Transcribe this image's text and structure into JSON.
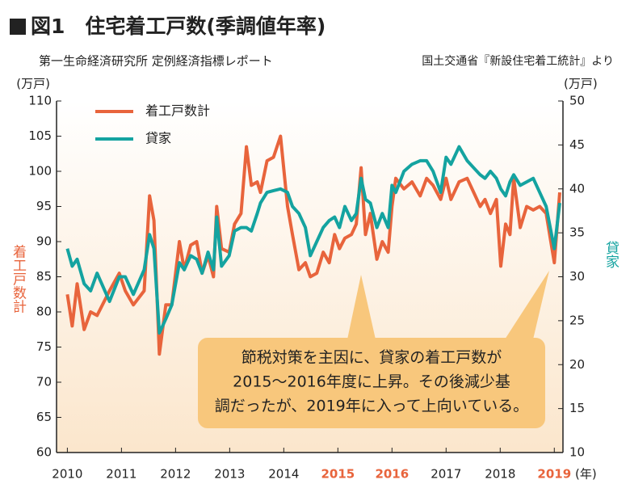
{
  "chart_data": {
    "type": "line",
    "title": "図1　住宅着工戸数(季調値年率)",
    "subtitle": "第一生命経済研究所 定例経済指標レポート",
    "source": "国土交通省『新設住宅着工統計』より",
    "y_unit": "(万戸)",
    "y2_unit": "(万戸)",
    "x_label": "(年)",
    "y_label": "着工戸数計",
    "y2_label": "貸家",
    "annotation": [
      "節税対策を主因に、貸家の着工戸数が",
      "2015～2016年度に上昇。その後減少基",
      "調だったが、2019年に入って上向いている。"
    ],
    "xlim": [
      2009.8,
      2019.16
    ],
    "xticks": [
      2010,
      2011,
      2012,
      2013,
      2014,
      2015,
      2016,
      2017,
      2018,
      2019
    ],
    "highlighted_xticks": [
      2015,
      2016,
      2019
    ],
    "highlight_color": "#e8643c",
    "ylim": [
      60,
      110
    ],
    "yticks": [
      60,
      65,
      70,
      75,
      80,
      85,
      90,
      95,
      100,
      105,
      110
    ],
    "y2lim": [
      10,
      50
    ],
    "y2ticks": [
      10,
      15,
      20,
      25,
      30,
      35,
      40,
      45,
      50
    ],
    "legend": "upper left",
    "x": [
      2010.0,
      2010.09,
      2010.18,
      2010.31,
      2010.43,
      2010.55,
      2010.78,
      2010.96,
      2011.07,
      2011.22,
      2011.42,
      2011.52,
      2011.6,
      2011.7,
      2011.82,
      2011.93,
      2012.07,
      2012.16,
      2012.28,
      2012.39,
      2012.49,
      2012.6,
      2012.7,
      2012.76,
      2012.85,
      2012.99,
      2013.09,
      2013.21,
      2013.31,
      2013.4,
      2013.51,
      2013.57,
      2013.69,
      2013.81,
      2013.94,
      2014.07,
      2014.16,
      2014.28,
      2014.4,
      2014.49,
      2014.61,
      2014.73,
      2014.84,
      2014.94,
      2015.03,
      2015.13,
      2015.25,
      2015.34,
      2015.43,
      2015.51,
      2015.6,
      2015.72,
      2015.82,
      2015.93,
      2016.0,
      2016.07,
      2016.22,
      2016.37,
      2016.52,
      2016.64,
      2016.76,
      2016.9,
      2017.0,
      2017.09,
      2017.24,
      2017.39,
      2017.51,
      2017.63,
      2017.72,
      2017.82,
      2017.93,
      2018.01,
      2018.1,
      2018.18,
      2018.25,
      2018.37,
      2018.49,
      2018.61,
      2018.73,
      2018.85,
      2019.0,
      2019.1
    ],
    "series": [
      {
        "name": "着工戸数計",
        "color": "#e8643c",
        "axis": "y",
        "values": [
          82.5,
          78,
          84,
          77.5,
          80,
          79.5,
          83,
          85.5,
          83,
          81,
          83,
          96.5,
          93,
          74,
          81,
          81,
          90,
          86,
          89.5,
          90,
          85.5,
          88,
          85,
          95,
          89,
          88.5,
          92.5,
          94,
          103.5,
          98,
          98.5,
          97,
          101.5,
          102,
          105,
          95,
          91,
          86,
          87,
          85,
          85.5,
          88.5,
          87,
          91,
          89,
          90.5,
          91,
          92.5,
          100.5,
          91,
          94,
          87.5,
          90,
          88.5,
          95,
          99,
          97.5,
          98.5,
          96.5,
          99,
          98,
          96,
          99,
          96,
          98.5,
          99,
          97,
          95,
          96,
          94,
          96,
          86.5,
          92.5,
          91,
          99,
          92,
          95,
          94.5,
          95,
          94,
          87,
          97
        ]
      },
      {
        "name": "貸家",
        "color": "#14a3a0",
        "axis": "y2",
        "values": [
          33.2,
          31.2,
          32,
          29.2,
          28.4,
          30.4,
          27.2,
          30,
          30,
          28,
          30.8,
          34.8,
          33.2,
          23.6,
          25.2,
          26.8,
          31.6,
          30.8,
          32.4,
          32,
          30.4,
          32.8,
          30.8,
          36.8,
          31.2,
          32.4,
          35.2,
          35.6,
          35.6,
          35.2,
          37.2,
          38.4,
          39.6,
          39.8,
          40,
          39.6,
          38,
          37.2,
          35.6,
          32.4,
          34,
          35.6,
          36.4,
          36.8,
          35.6,
          38,
          36.4,
          37.2,
          41.2,
          38.8,
          38.4,
          35.6,
          37.2,
          35.6,
          40.4,
          39.6,
          42,
          42.8,
          43.2,
          43.2,
          42,
          39.6,
          43.6,
          42.8,
          44.8,
          43.2,
          42.4,
          41.6,
          41.2,
          42,
          41.2,
          40,
          39.2,
          40.8,
          41.6,
          40.4,
          40.8,
          41.2,
          39.6,
          38,
          33.2,
          38.4
        ]
      }
    ]
  }
}
